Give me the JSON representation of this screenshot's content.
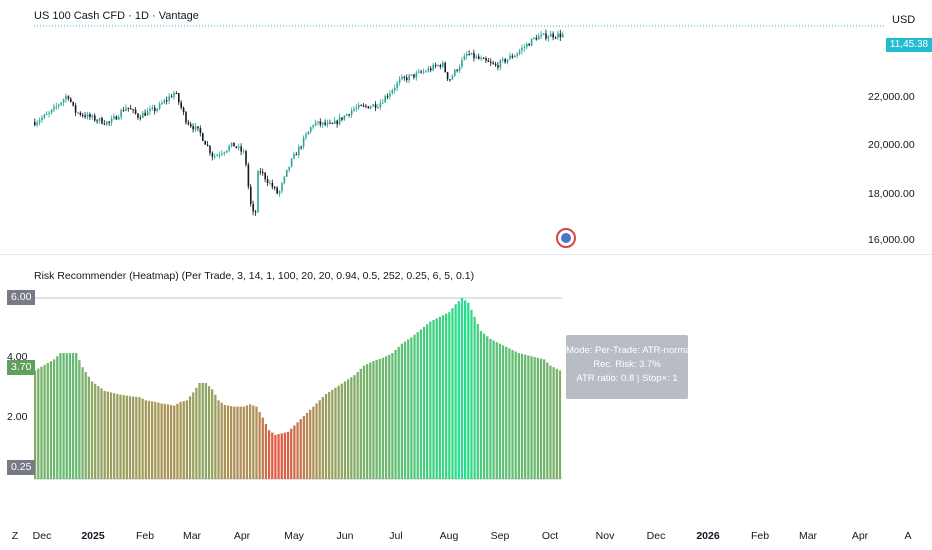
{
  "header": {
    "title": "US 100 Cash CFD · 1D · Vantage",
    "currency": "USD",
    "last_price_label": "11,45.38"
  },
  "price_axis": {
    "labels": [
      "22,000.00",
      "20,000.00",
      "18,000.00",
      "16,000.00"
    ]
  },
  "indicator": {
    "title": "Risk Recommender (Heatmap) (Per Trade, 3, 14, 1, 100, 20, 20, 0.94, 0.5, 252, 0.25, 6, 5, 0.1)",
    "axis_labels": [
      "4.00",
      "2.00"
    ],
    "max_tag": "6.00",
    "current_tag": "3.70",
    "min_tag": "0.25",
    "tooltip": {
      "line1": "Mode: Per-Trade: ATR-normalized",
      "line2": "Rec. Risk: 3.7%",
      "line3": "ATR ratio: 0.8 | Stop×: 1"
    }
  },
  "time_axis": {
    "labels": [
      {
        "text": "Z",
        "bold": false
      },
      {
        "text": "Dec",
        "bold": false
      },
      {
        "text": "2025",
        "bold": true
      },
      {
        "text": "Feb",
        "bold": false
      },
      {
        "text": "Mar",
        "bold": false
      },
      {
        "text": "Apr",
        "bold": false
      },
      {
        "text": "May",
        "bold": false
      },
      {
        "text": "Jun",
        "bold": false
      },
      {
        "text": "Jul",
        "bold": false
      },
      {
        "text": "Aug",
        "bold": false
      },
      {
        "text": "Sep",
        "bold": false
      },
      {
        "text": "Oct",
        "bold": false
      },
      {
        "text": "Nov",
        "bold": false
      },
      {
        "text": "Dec",
        "bold": false
      },
      {
        "text": "2026",
        "bold": true
      },
      {
        "text": "Feb",
        "bold": false
      },
      {
        "text": "Mar",
        "bold": false
      },
      {
        "text": "Apr",
        "bold": false
      },
      {
        "text": "A",
        "bold": false
      }
    ]
  },
  "colors": {
    "candle_up": "#26a69a",
    "candle_down": "#131722",
    "heat_low": "#e15a46",
    "heat_mid": "#a39a5a",
    "heat_high": "#22e08c",
    "tag_gray": "#787b86",
    "tag_green": "#5fa05f"
  },
  "chart_data": [
    {
      "type": "candlestick",
      "title": "US 100 Cash CFD · 1D · Vantage",
      "ylabel": "USD",
      "ylim": [
        15800,
        24500
      ],
      "x_range": [
        "2024-11",
        "2026-04"
      ],
      "close_path": [
        [
          "2024-11-15",
          20800
        ],
        [
          "2024-11-25",
          20900
        ],
        [
          "2024-12-05",
          21300
        ],
        [
          "2024-12-16",
          22100
        ],
        [
          "2024-12-20",
          21400
        ],
        [
          "2024-12-31",
          21100
        ],
        [
          "2025-01-10",
          20900
        ],
        [
          "2025-01-20",
          21600
        ],
        [
          "2025-01-27",
          21200
        ],
        [
          "2025-02-07",
          21500
        ],
        [
          "2025-02-18",
          22200
        ],
        [
          "2025-02-25",
          21000
        ],
        [
          "2025-03-05",
          20500
        ],
        [
          "2025-03-13",
          19500
        ],
        [
          "2025-03-25",
          20000
        ],
        [
          "2025-04-01",
          19600
        ],
        [
          "2025-04-04",
          17600
        ],
        [
          "2025-04-07",
          16800
        ],
        [
          "2025-04-09",
          19000
        ],
        [
          "2025-04-21",
          17900
        ],
        [
          "2025-04-28",
          19200
        ],
        [
          "2025-05-12",
          20900
        ],
        [
          "2025-05-23",
          20800
        ],
        [
          "2025-06-05",
          21500
        ],
        [
          "2025-06-20",
          21700
        ],
        [
          "2025-07-03",
          22700
        ],
        [
          "2025-07-15",
          23000
        ],
        [
          "2025-07-28",
          23400
        ],
        [
          "2025-08-01",
          22700
        ],
        [
          "2025-08-12",
          23800
        ],
        [
          "2025-08-22",
          23500
        ],
        [
          "2025-08-29",
          23300
        ],
        [
          "2025-09-10",
          23800
        ],
        [
          "2025-09-22",
          24500
        ],
        [
          "2025-10-01",
          24600
        ]
      ]
    },
    {
      "type": "bar",
      "title": "Risk Recommender (Heatmap)",
      "ylabel": "Rec. Risk %",
      "ylim": [
        0.25,
        6.0
      ],
      "series_points": [
        [
          0,
          3.7
        ],
        [
          6,
          4.05
        ],
        [
          8,
          4.25
        ],
        [
          13,
          4.25
        ],
        [
          15,
          3.8
        ],
        [
          18,
          3.35
        ],
        [
          22,
          3.05
        ],
        [
          26,
          2.95
        ],
        [
          30,
          2.88
        ],
        [
          33,
          2.85
        ],
        [
          35,
          2.75
        ],
        [
          38,
          2.7
        ],
        [
          40,
          2.65
        ],
        [
          42,
          2.62
        ],
        [
          44,
          2.58
        ],
        [
          46,
          2.7
        ],
        [
          48,
          2.75
        ],
        [
          50,
          3.0
        ],
        [
          52,
          3.3
        ],
        [
          54,
          3.3
        ],
        [
          56,
          3.1
        ],
        [
          58,
          2.75
        ],
        [
          60,
          2.6
        ],
        [
          63,
          2.55
        ],
        [
          66,
          2.55
        ],
        [
          68,
          2.62
        ],
        [
          70,
          2.55
        ],
        [
          72,
          2.2
        ],
        [
          74,
          1.8
        ],
        [
          76,
          1.65
        ],
        [
          80,
          1.75
        ],
        [
          83,
          2.05
        ],
        [
          86,
          2.35
        ],
        [
          89,
          2.65
        ],
        [
          92,
          2.95
        ],
        [
          95,
          3.15
        ],
        [
          98,
          3.35
        ],
        [
          101,
          3.55
        ],
        [
          104,
          3.85
        ],
        [
          107,
          4.0
        ],
        [
          110,
          4.1
        ],
        [
          113,
          4.25
        ],
        [
          116,
          4.55
        ],
        [
          119,
          4.75
        ],
        [
          122,
          5.0
        ],
        [
          125,
          5.25
        ],
        [
          128,
          5.4
        ],
        [
          131,
          5.55
        ],
        [
          133,
          5.8
        ],
        [
          135,
          6.0
        ],
        [
          137,
          5.85
        ],
        [
          139,
          5.4
        ],
        [
          141,
          4.95
        ],
        [
          144,
          4.7
        ],
        [
          147,
          4.55
        ],
        [
          150,
          4.4
        ],
        [
          153,
          4.25
        ],
        [
          157,
          4.15
        ],
        [
          161,
          4.05
        ],
        [
          163,
          3.85
        ],
        [
          166,
          3.7
        ]
      ],
      "bar_count": 167,
      "current": 3.7
    }
  ]
}
